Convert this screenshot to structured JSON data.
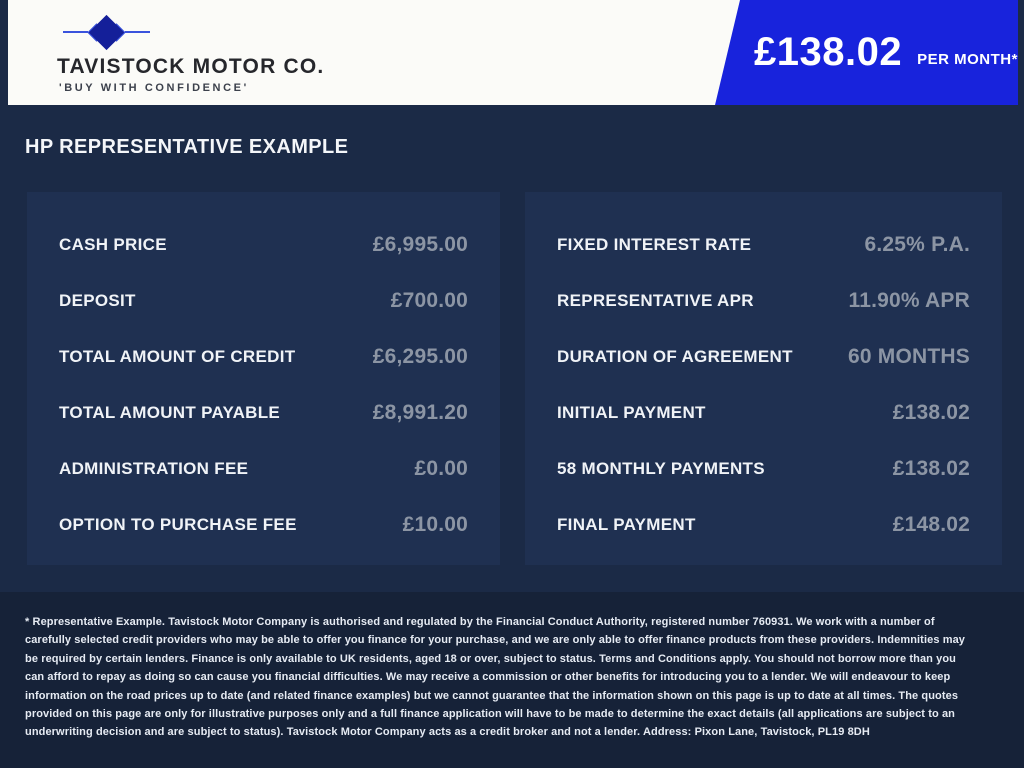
{
  "brand": {
    "name": "TAVISTOCK MOTOR CO.",
    "tagline": "'BUY WITH CONFIDENCE'"
  },
  "banner": {
    "price": "£138.02",
    "suffix": "PER MONTH*",
    "color": "#1823DC"
  },
  "heading": "HP REPRESENTATIVE EXAMPLE",
  "panels": {
    "left": {
      "rows": [
        {
          "label": "CASH PRICE",
          "value": "£6,995.00"
        },
        {
          "label": "DEPOSIT",
          "value": "£700.00"
        },
        {
          "label": "TOTAL AMOUNT OF CREDIT",
          "value": "£6,295.00"
        },
        {
          "label": "TOTAL AMOUNT PAYABLE",
          "value": "£8,991.20"
        },
        {
          "label": "ADMINISTRATION FEE",
          "value": "£0.00"
        },
        {
          "label": "OPTION TO PURCHASE FEE",
          "value": "£10.00"
        }
      ]
    },
    "right": {
      "rows": [
        {
          "label": "FIXED INTEREST RATE",
          "value": "6.25% P.A."
        },
        {
          "label": "REPRESENTATIVE APR",
          "value": "11.90% APR"
        },
        {
          "label": "DURATION OF AGREEMENT",
          "value": "60 MONTHS"
        },
        {
          "label": "INITIAL PAYMENT",
          "value": "£138.02"
        },
        {
          "label": "58 MONTHLY PAYMENTS",
          "value": "£138.02"
        },
        {
          "label": "FINAL PAYMENT",
          "value": "£148.02"
        }
      ]
    }
  },
  "footer": {
    "text": "* Representative Example. Tavistock Motor Company is authorised and regulated by the Financial Conduct Authority, registered number 760931. We work with a number of carefully selected credit providers who may be able to offer you finance for your purchase, and we are only able to offer finance products from these providers. Indemnities may be required by certain lenders. Finance is only available to UK residents, aged 18 or over, subject to status. Terms and Conditions apply. You should not borrow more than you can afford to repay as doing so can cause you financial difficulties. We may receive a commission or other benefits for introducing you to a lender. We will endeavour to keep information on the road prices up to date (and related finance examples) but we cannot guarantee that the information shown on this page is up to date at all times. The quotes provided on this page are only for illustrative purposes only and a full finance application will have to be made to determine the exact details (all applications are subject to an underwriting decision and are subject to status). Tavistock Motor Company acts as a credit broker and not a lender. Address: Pixon Lane, Tavistock, PL19 8DH"
  },
  "colors": {
    "page_background": "#1B2A46",
    "panel_background": "#1F3051",
    "footer_background": "#162238",
    "header_background": "#FBFBF8",
    "banner_blue": "#1823DC",
    "value_grey": "#8C95A4"
  }
}
